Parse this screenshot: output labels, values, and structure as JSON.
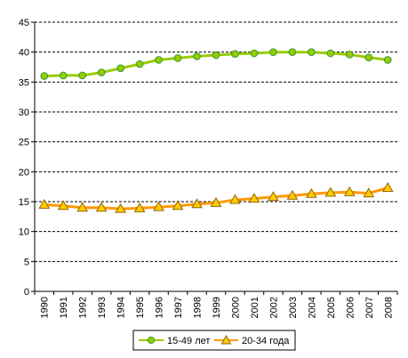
{
  "chart_data": {
    "type": "line",
    "title": "",
    "xlabel": "",
    "ylabel": "",
    "ylim": [
      0,
      45
    ],
    "ytick_step": 5,
    "grid": "horizontal dashed",
    "legend_position": "bottom-center",
    "categories": [
      "1990",
      "1991",
      "1992",
      "1993",
      "1994",
      "1995",
      "1996",
      "1997",
      "1998",
      "1999",
      "2000",
      "2001",
      "2002",
      "2003",
      "2004",
      "2005",
      "2006",
      "2007",
      "2008"
    ],
    "series": [
      {
        "name": "15-49 лет",
        "marker": "circle",
        "color": "#99cc00",
        "marker_fill": "#99cc00",
        "marker_stroke": "#339933",
        "values": [
          36.0,
          36.1,
          36.1,
          36.6,
          37.3,
          38.0,
          38.7,
          39.0,
          39.3,
          39.5,
          39.7,
          39.8,
          40.0,
          40.0,
          40.0,
          39.8,
          39.6,
          39.1,
          38.7
        ]
      },
      {
        "name": "20-34 года",
        "marker": "triangle",
        "color": "#ff9900",
        "marker_fill": "#ffcc00",
        "marker_stroke": "#996600",
        "values": [
          14.5,
          14.3,
          14.0,
          14.0,
          13.8,
          13.9,
          14.1,
          14.3,
          14.6,
          14.8,
          15.3,
          15.5,
          15.8,
          16.0,
          16.3,
          16.5,
          16.6,
          16.4,
          17.3
        ]
      }
    ]
  }
}
